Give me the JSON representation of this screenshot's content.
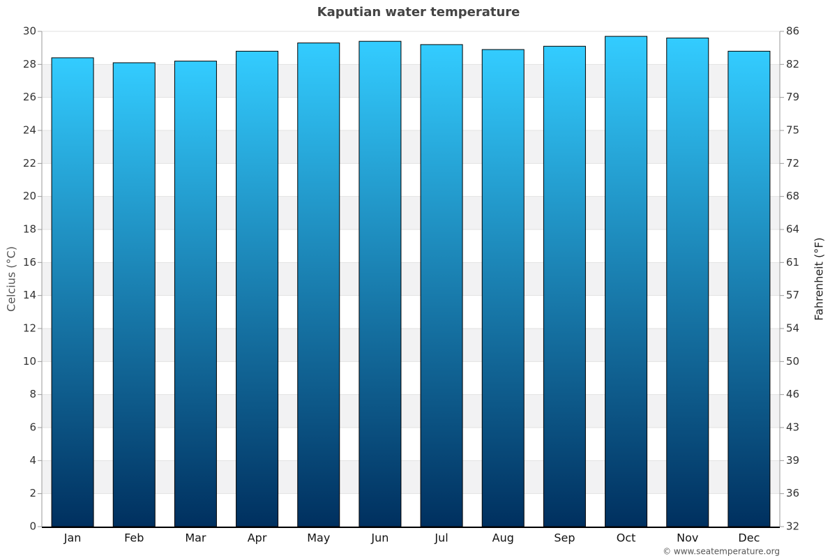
{
  "chart_data": {
    "type": "bar",
    "title": "Kaputian water temperature",
    "categories": [
      "Jan",
      "Feb",
      "Mar",
      "Apr",
      "May",
      "Jun",
      "Jul",
      "Aug",
      "Sep",
      "Oct",
      "Nov",
      "Dec"
    ],
    "values": [
      28.4,
      28.1,
      28.2,
      28.8,
      29.3,
      29.4,
      29.2,
      28.9,
      29.1,
      29.7,
      29.6,
      28.8
    ],
    "gradient": [
      "#33ccff",
      "#00305f"
    ],
    "ylabel": "Celcius (°C)",
    "y2label": "Fahrenheit (°F)",
    "ylim": [
      0,
      30
    ],
    "yticks": [
      0,
      2,
      4,
      6,
      8,
      10,
      12,
      14,
      16,
      18,
      20,
      22,
      24,
      26,
      28,
      30
    ],
    "y2lim": [
      32,
      86
    ],
    "y2ticks": [
      32,
      {
        "value": 35.6,
        "label": "36"
      },
      {
        "value": 39.2,
        "label": "39"
      },
      {
        "value": 42.8,
        "label": "43"
      },
      {
        "value": 46.4,
        "label": "46"
      },
      50,
      {
        "value": 53.6,
        "label": "54"
      },
      {
        "value": 57.2,
        "label": "57"
      },
      {
        "value": 60.8,
        "label": "61"
      },
      {
        "value": 64.4,
        "label": "64"
      },
      68,
      {
        "value": 71.6,
        "label": "72"
      },
      {
        "value": 75.2,
        "label": "75"
      },
      {
        "value": 78.8,
        "label": "79"
      },
      {
        "value": 82.4,
        "label": "82"
      },
      86
    ],
    "grid": true,
    "credit": "© www.seatemperature.org"
  }
}
